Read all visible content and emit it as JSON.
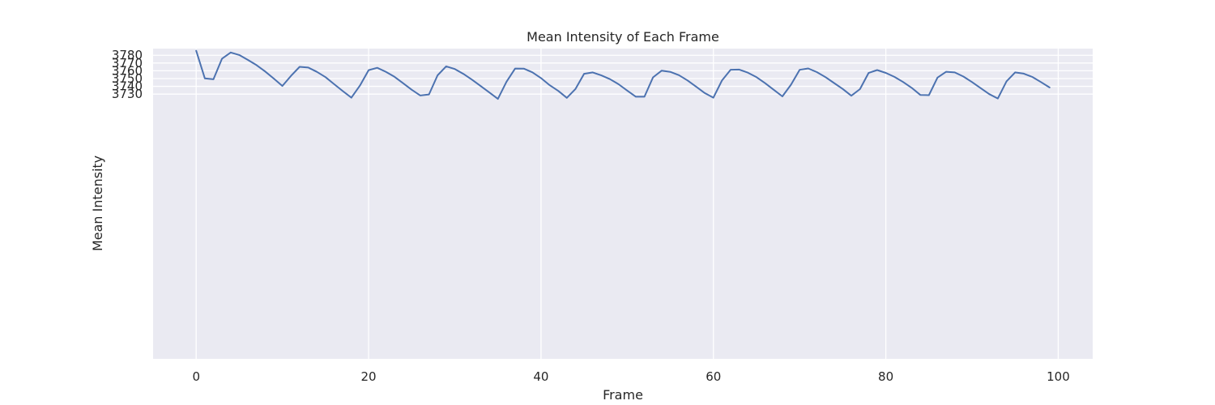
{
  "chart_data": {
    "type": "line",
    "title": "Mean Intensity of Each Frame",
    "xlabel": "Frame",
    "ylabel": "Mean Intensity",
    "xlim": [
      -5,
      104
    ],
    "ylim": [
      3721,
      3389
    ],
    "xticks": [
      0,
      20,
      40,
      60,
      80,
      100
    ],
    "yticks": [
      3730,
      3740,
      3750,
      3760,
      3770,
      3780
    ],
    "grid": true,
    "background_color": "#eaeaf2",
    "line_color": "#4c72b0",
    "series": [
      {
        "x": [
          0,
          1,
          2,
          3,
          4,
          5,
          6,
          7,
          8,
          9,
          10,
          11,
          12,
          13,
          14,
          15,
          16,
          17,
          18,
          19,
          20,
          21,
          22,
          23,
          24,
          25,
          26,
          27,
          28,
          29,
          30,
          31,
          32,
          33,
          34,
          35,
          36,
          37,
          38,
          39,
          40,
          41,
          42,
          43,
          44,
          45,
          46,
          47,
          48,
          49,
          50,
          51,
          52,
          53,
          54,
          55,
          56,
          57,
          58,
          59,
          60,
          61,
          62,
          63,
          64,
          65,
          66,
          67,
          68,
          69,
          70,
          71,
          72,
          73,
          74,
          75,
          76,
          77,
          78,
          79,
          80,
          81,
          82,
          83,
          84,
          85,
          86,
          87,
          88,
          89,
          90,
          91,
          92,
          93,
          94,
          95,
          96,
          97,
          98,
          99
        ],
        "y": [
          3785.9,
          3750.2,
          3749.1,
          3775.7,
          3783.6,
          3780.4,
          3774.0,
          3767.3,
          3759.2,
          3750.0,
          3740.5,
          3753.5,
          3765.1,
          3764.2,
          3758.7,
          3751.9,
          3742.8,
          3733.9,
          3725.4,
          3741.0,
          3760.8,
          3763.9,
          3758.8,
          3752.3,
          3744.1,
          3735.6,
          3728.2,
          3729.5,
          3754.2,
          3765.8,
          3762.3,
          3756.0,
          3748.5,
          3740.4,
          3732.2,
          3723.8,
          3745.9,
          3762.9,
          3762.8,
          3758.0,
          3750.6,
          3741.5,
          3734.1,
          3725.2,
          3736.6,
          3756.1,
          3757.9,
          3754.1,
          3749.3,
          3742.7,
          3734.6,
          3726.6,
          3726.6,
          3751.6,
          3760.2,
          3758.7,
          3754.4,
          3747.6,
          3739.5,
          3731.3,
          3725.4,
          3747.7,
          3761.4,
          3761.6,
          3757.6,
          3751.8,
          3744.0,
          3735.6,
          3727.0,
          3742.1,
          3761.3,
          3763.0,
          3758.3,
          3751.9,
          3744.3,
          3736.6,
          3727.9,
          3736.4,
          3757.2,
          3760.9,
          3757.3,
          3752.2,
          3745.6,
          3738.1,
          3728.9,
          3728.6,
          3751.2,
          3758.8,
          3757.9,
          3752.6,
          3745.5,
          3737.7,
          3730.0,
          3724.3,
          3746.4,
          3757.9,
          3756.4,
          3752.1,
          3745.5,
          3738.5
        ]
      }
    ]
  }
}
